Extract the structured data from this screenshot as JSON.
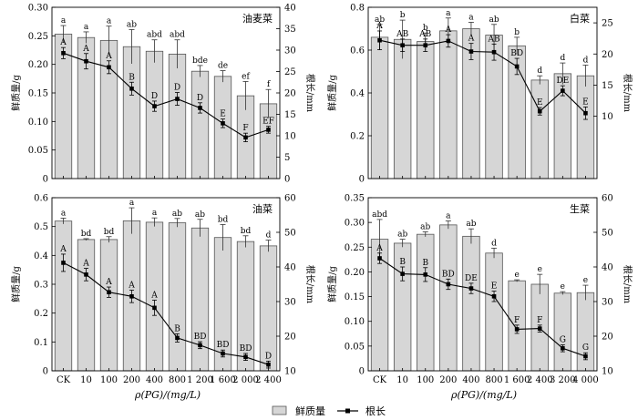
{
  "x_title": "ρ(PG)/(mg/L)",
  "legend": {
    "bar_label": "鲜质量",
    "line_label": "根长"
  },
  "colors": {
    "bar_fill": "#d6d6d6",
    "bar_stroke": "#555555",
    "line": "#000000",
    "axis": "#000000"
  },
  "chart_data": [
    {
      "type": "bar",
      "title": "油麦菜",
      "categories": [
        "CK",
        "10",
        "100",
        "200",
        "400",
        "800",
        "1 200",
        "1 600",
        "2 000",
        "2 400"
      ],
      "show_xticks": false,
      "ylabel": "鲜质量/g",
      "ylim": [
        0,
        0.3
      ],
      "yticks": [
        0,
        0.05,
        0.1,
        0.15,
        0.2,
        0.25,
        0.3
      ],
      "ytick_labels": [
        "0",
        "0.05",
        "0.10",
        "0.15",
        "0.20",
        "0.25",
        "0.30"
      ],
      "y2label": "根长/mm",
      "y2lim": [
        0,
        40
      ],
      "y2ticks": [
        0,
        5,
        10,
        15,
        20,
        25,
        30,
        35,
        40
      ],
      "y2tick_labels": [
        "0",
        "5",
        "10",
        "15",
        "20",
        "25",
        "30",
        "35",
        "40"
      ],
      "series": [
        {
          "name": "鲜质量",
          "kind": "bar",
          "values": [
            0.253,
            0.247,
            0.242,
            0.231,
            0.223,
            0.218,
            0.188,
            0.179,
            0.145,
            0.131
          ],
          "errors": [
            0.015,
            0.01,
            0.025,
            0.03,
            0.02,
            0.025,
            0.01,
            0.01,
            0.025,
            0.025
          ],
          "letters": [
            "a",
            "a",
            "a",
            "ab",
            "abd",
            "abd",
            "bde",
            "de",
            "ef",
            "f"
          ]
        },
        {
          "name": "根长",
          "kind": "line",
          "values": [
            29.3,
            27.4,
            26.0,
            21.0,
            16.9,
            18.6,
            16.5,
            12.9,
            9.6,
            11.4
          ],
          "errors": [
            1.3,
            1.8,
            1.5,
            1.5,
            1.2,
            1.5,
            1.2,
            1.0,
            1.0,
            0.8
          ],
          "letters": [
            "A",
            "A",
            "A",
            "B",
            "D",
            "D",
            "D",
            "E",
            "F",
            "EF"
          ]
        }
      ]
    },
    {
      "type": "bar",
      "title": "白菜",
      "categories": [
        "CK",
        "10",
        "100",
        "200",
        "400",
        "800",
        "1 200",
        "1 600",
        "2 000",
        "2 400"
      ],
      "show_xticks": false,
      "ylabel": "鲜质量/g",
      "ylim": [
        0,
        0.8
      ],
      "yticks": [
        0,
        0.2,
        0.4,
        0.6,
        0.8
      ],
      "ytick_labels": [
        "0",
        "0.2",
        "0.4",
        "0.6",
        "0.8"
      ],
      "y2label": "根长/mm",
      "y2lim": [
        0,
        27.5
      ],
      "y2ticks": [
        10,
        15,
        20,
        25
      ],
      "y2tick_labels": [
        "10",
        "15",
        "20",
        "25"
      ],
      "series": [
        {
          "name": "鲜质量",
          "kind": "bar",
          "values": [
            0.66,
            0.65,
            0.64,
            0.69,
            0.7,
            0.67,
            0.62,
            0.46,
            0.49,
            0.48
          ],
          "errors": [
            0.06,
            0.09,
            0.04,
            0.06,
            0.03,
            0.05,
            0.04,
            0.02,
            0.05,
            0.05
          ],
          "letters": [
            "ab",
            "b",
            "b",
            "a",
            "a",
            "ab",
            "b",
            "d",
            "d",
            "d"
          ]
        },
        {
          "name": "根长",
          "kind": "line",
          "values": [
            22.2,
            21.4,
            21.4,
            22.1,
            20.4,
            20.3,
            18.0,
            10.8,
            14.1,
            10.5
          ],
          "errors": [
            1.5,
            1.0,
            1.0,
            1.0,
            1.3,
            1.3,
            1.3,
            0.6,
            0.8,
            1.0
          ],
          "letters": [
            "A",
            "AB",
            "AB",
            "A",
            "A",
            "AB",
            "BD",
            "E",
            "DE",
            "E"
          ]
        }
      ]
    },
    {
      "type": "bar",
      "title": "油菜",
      "categories": [
        "CK",
        "10",
        "100",
        "200",
        "400",
        "800",
        "1 200",
        "1 600",
        "2 000",
        "2 400"
      ],
      "show_xticks": true,
      "ylabel": "鲜质量/g",
      "ylim": [
        0,
        0.6
      ],
      "yticks": [
        0,
        0.1,
        0.2,
        0.3,
        0.4,
        0.5,
        0.6
      ],
      "ytick_labels": [
        "0",
        "0.1",
        "0.2",
        "0.3",
        "0.4",
        "0.5",
        "0.6"
      ],
      "y2label": "根长/mm",
      "y2lim": [
        10,
        60
      ],
      "y2ticks": [
        10,
        20,
        30,
        40,
        50,
        60
      ],
      "y2tick_labels": [
        "10",
        "20",
        "30",
        "40",
        "50",
        "60"
      ],
      "series": [
        {
          "name": "鲜质量",
          "kind": "bar",
          "values": [
            0.519,
            0.455,
            0.455,
            0.52,
            0.515,
            0.513,
            0.495,
            0.462,
            0.448,
            0.433
          ],
          "errors": [
            0.01,
            0.003,
            0.01,
            0.045,
            0.015,
            0.015,
            0.03,
            0.045,
            0.02,
            0.02
          ],
          "letters": [
            "a",
            "bd",
            "bd",
            "a",
            "a",
            "ab",
            "ab",
            "bd",
            "bd",
            "d"
          ]
        },
        {
          "name": "根长",
          "kind": "line",
          "values": [
            41.2,
            37.8,
            32.7,
            31.5,
            28.2,
            19.5,
            17.4,
            15.0,
            14.0,
            11.8
          ],
          "errors": [
            2.5,
            1.8,
            1.5,
            1.8,
            2.2,
            1.2,
            1.0,
            1.0,
            1.0,
            1.0
          ],
          "letters": [
            "A",
            "A",
            "A",
            "A",
            "A",
            "B",
            "BD",
            "BD",
            "BD",
            "D"
          ]
        }
      ]
    },
    {
      "type": "bar",
      "title": "生菜",
      "categories": [
        "CK",
        "10",
        "100",
        "200",
        "400",
        "800",
        "1 600",
        "2 400",
        "3 200",
        "4 000"
      ],
      "show_xticks": true,
      "ylabel": "鲜质量/g",
      "ylim": [
        0,
        0.35
      ],
      "yticks": [
        0,
        0.05,
        0.1,
        0.15,
        0.2,
        0.25,
        0.3,
        0.35
      ],
      "ytick_labels": [
        "0",
        "0.05",
        "0.10",
        "0.15",
        "0.20",
        "0.25",
        "0.30",
        "0.35"
      ],
      "y2label": "根长/mm",
      "y2lim": [
        10,
        60
      ],
      "y2ticks": [
        10,
        20,
        30,
        40,
        50,
        60
      ],
      "y2tick_labels": [
        "10",
        "20",
        "30",
        "40",
        "50",
        "60"
      ],
      "series": [
        {
          "name": "鲜质量",
          "kind": "bar",
          "values": [
            0.266,
            0.258,
            0.276,
            0.295,
            0.272,
            0.238,
            0.182,
            0.175,
            0.157,
            0.158
          ],
          "errors": [
            0.04,
            0.008,
            0.005,
            0.008,
            0.015,
            0.01,
            0.002,
            0.02,
            0.003,
            0.015
          ],
          "letters": [
            "abd",
            "ab",
            "ab",
            "a",
            "ab",
            "d",
            "e",
            "e",
            "e",
            "e"
          ]
        },
        {
          "name": "根长",
          "kind": "line",
          "values": [
            42.5,
            38.0,
            37.8,
            35.0,
            33.8,
            31.5,
            22.0,
            22.2,
            16.5,
            14.2
          ],
          "errors": [
            1.5,
            2.0,
            2.0,
            1.5,
            1.5,
            1.5,
            1.2,
            1.0,
            1.0,
            1.0
          ],
          "letters": [
            "A",
            "B",
            "B",
            "BD",
            "DE",
            "E",
            "F",
            "F",
            "G",
            "G"
          ]
        }
      ]
    }
  ]
}
